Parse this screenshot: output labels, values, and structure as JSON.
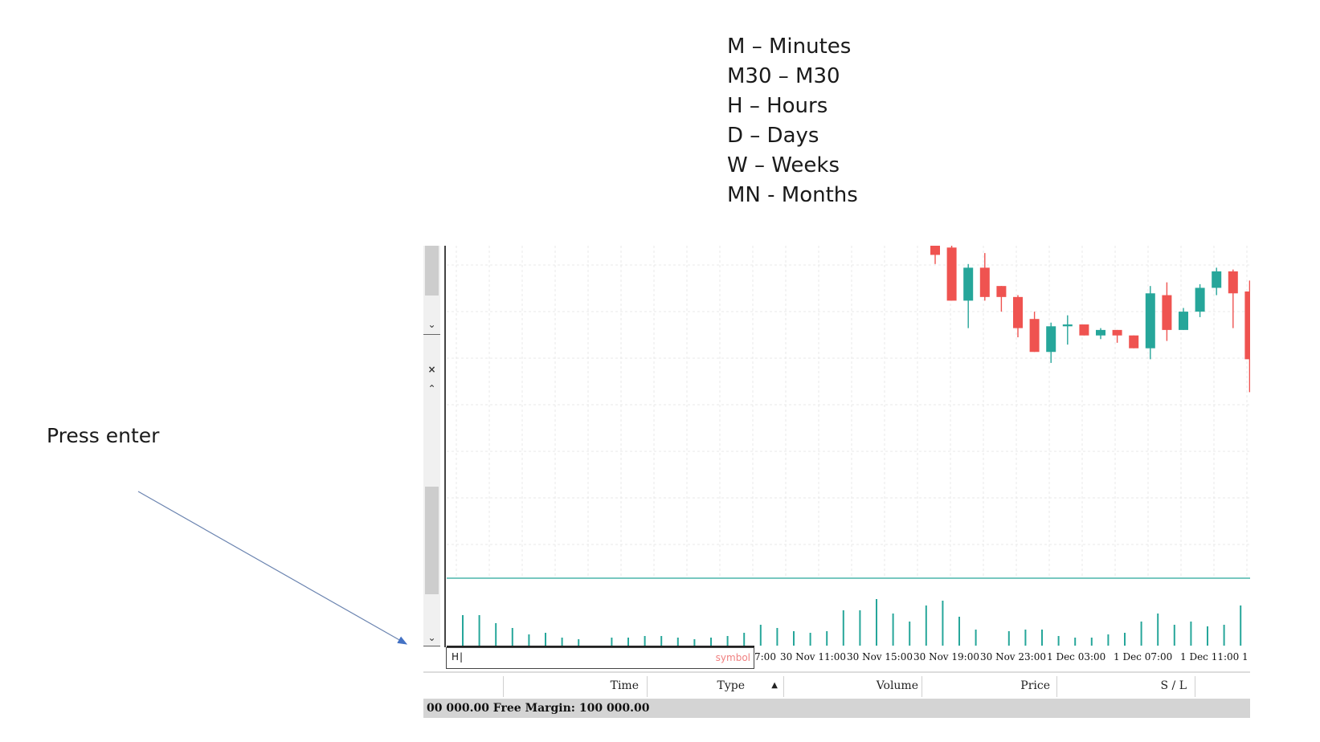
{
  "timeframe_legend": [
    "M – Minutes",
    "M30 – M30",
    "H – Hours",
    "D – Days",
    "W – Weeks",
    "MN - Months"
  ],
  "annotation": {
    "text": "Press enter"
  },
  "scrollbar": {
    "down_arrow": "⌄",
    "close": "×",
    "up_arrow": "⌃"
  },
  "command_input": {
    "value": "H",
    "hint": "symbol"
  },
  "time_axis": [
    "7:00",
    "30 Nov 11:00",
    "30 Nov 15:00",
    "30 Nov 19:00",
    "30 Nov 23:00",
    "1 Dec 03:00",
    "1 Dec 07:00",
    "1 Dec 11:00",
    "1"
  ],
  "columns": [
    "Time",
    "Type",
    "Volume",
    "Price",
    "S / L"
  ],
  "sort_indicator": "▲",
  "status": {
    "text": "00 000.00  Free Margin: 100 000.00"
  },
  "colors": {
    "bull": "#26a69a",
    "bear": "#ef5350",
    "grid": "#e8e8e8"
  },
  "chart_data": {
    "type": "candlestick",
    "candles": [
      {
        "dir": "bear",
        "open": 1.0,
        "close": 0.95,
        "high": 1.0,
        "low": 0.9
      },
      {
        "dir": "bear",
        "open": 0.99,
        "close": 0.7,
        "high": 1.0,
        "low": 0.7
      },
      {
        "dir": "bull",
        "open": 0.7,
        "close": 0.88,
        "high": 0.9,
        "low": 0.55
      },
      {
        "dir": "bear",
        "open": 0.88,
        "close": 0.72,
        "high": 0.96,
        "low": 0.7
      },
      {
        "dir": "bear",
        "open": 0.78,
        "close": 0.72,
        "high": 0.78,
        "low": 0.64
      },
      {
        "dir": "bear",
        "open": 0.72,
        "close": 0.55,
        "high": 0.73,
        "low": 0.5
      },
      {
        "dir": "bear",
        "open": 0.6,
        "close": 0.42,
        "high": 0.64,
        "low": 0.42
      },
      {
        "dir": "bull",
        "open": 0.42,
        "close": 0.56,
        "high": 0.58,
        "low": 0.36
      },
      {
        "dir": "bull",
        "open": 0.56,
        "close": 0.57,
        "high": 0.62,
        "low": 0.46
      },
      {
        "dir": "bear",
        "open": 0.57,
        "close": 0.51,
        "high": 0.57,
        "low": 0.51
      },
      {
        "dir": "bull",
        "open": 0.51,
        "close": 0.54,
        "high": 0.55,
        "low": 0.49
      },
      {
        "dir": "bear",
        "open": 0.54,
        "close": 0.51,
        "high": 0.54,
        "low": 0.47
      },
      {
        "dir": "bear",
        "open": 0.51,
        "close": 0.44,
        "high": 0.51,
        "low": 0.44
      },
      {
        "dir": "bull",
        "open": 0.44,
        "close": 0.74,
        "high": 0.78,
        "low": 0.38
      },
      {
        "dir": "bear",
        "open": 0.73,
        "close": 0.54,
        "high": 0.8,
        "low": 0.48
      },
      {
        "dir": "bull",
        "open": 0.54,
        "close": 0.64,
        "high": 0.66,
        "low": 0.54
      },
      {
        "dir": "bull",
        "open": 0.64,
        "close": 0.77,
        "high": 0.79,
        "low": 0.61
      },
      {
        "dir": "bull",
        "open": 0.77,
        "close": 0.86,
        "high": 0.88,
        "low": 0.73
      },
      {
        "dir": "bear",
        "open": 0.86,
        "close": 0.74,
        "high": 0.87,
        "low": 0.55
      },
      {
        "dir": "bear",
        "open": 0.75,
        "close": 0.38,
        "high": 0.81,
        "low": 0.2
      }
    ],
    "volumes": [
      38,
      38,
      28,
      22,
      14,
      16,
      10,
      8,
      0,
      10,
      10,
      12,
      12,
      10,
      8,
      10,
      12,
      16,
      26,
      22,
      18,
      16,
      18,
      44,
      44,
      58,
      40,
      30,
      50,
      56,
      36,
      20,
      0,
      18,
      20,
      20,
      12,
      10,
      10,
      14,
      16,
      30,
      40,
      26,
      30,
      24,
      26,
      50
    ]
  }
}
